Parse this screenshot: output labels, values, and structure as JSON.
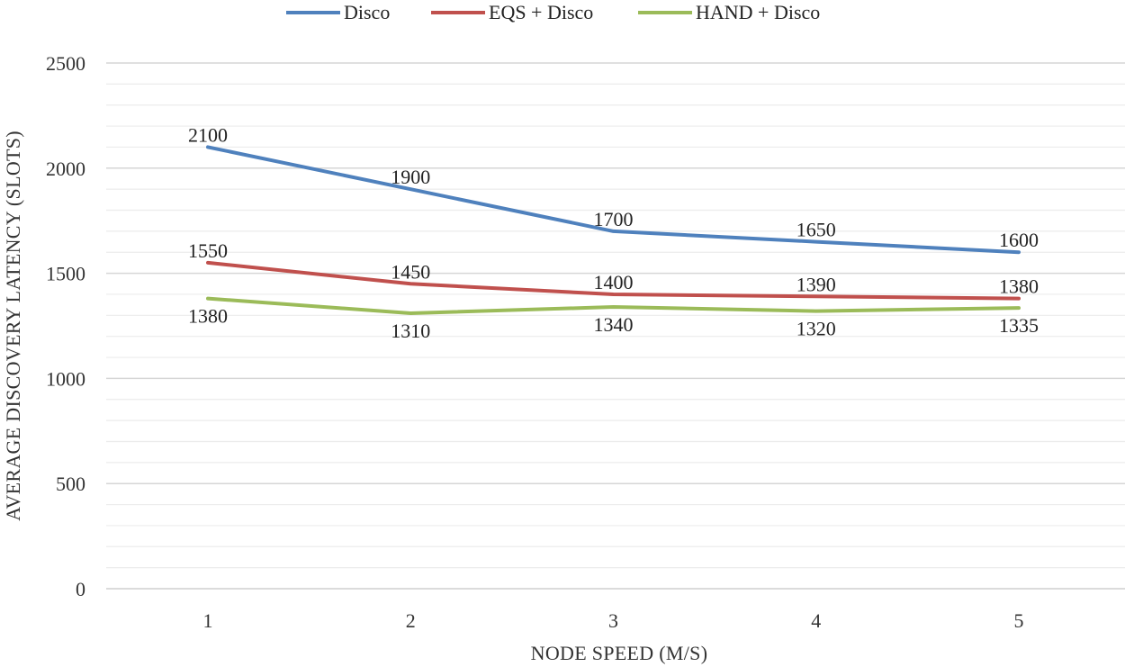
{
  "chart_data": {
    "type": "line",
    "title": "",
    "xlabel": "NODE SPEED (M/S)",
    "ylabel": "AVERAGE DISCOVERY LATENCY (SLOTS)",
    "categories": [
      "1",
      "2",
      "3",
      "4",
      "5"
    ],
    "ylim": [
      0,
      2500
    ],
    "yticks": [
      "0",
      "500",
      "1000",
      "1500",
      "2000",
      "2500"
    ],
    "ytick_values": [
      0,
      500,
      1000,
      1500,
      2000,
      2500
    ],
    "minor_grid_step": 100,
    "legend_position": "top-center",
    "series": [
      {
        "name": "Disco",
        "color": "#4F81BD",
        "label_position": "above",
        "values": [
          2100,
          1900,
          1700,
          1650,
          1600
        ]
      },
      {
        "name": "EQS + Disco",
        "color": "#C0504D",
        "label_position": "above",
        "values": [
          1550,
          1450,
          1400,
          1390,
          1380
        ]
      },
      {
        "name": "HAND + Disco",
        "color": "#9BBB59",
        "label_position": "below",
        "values": [
          1380,
          1310,
          1340,
          1320,
          1335
        ]
      }
    ]
  }
}
